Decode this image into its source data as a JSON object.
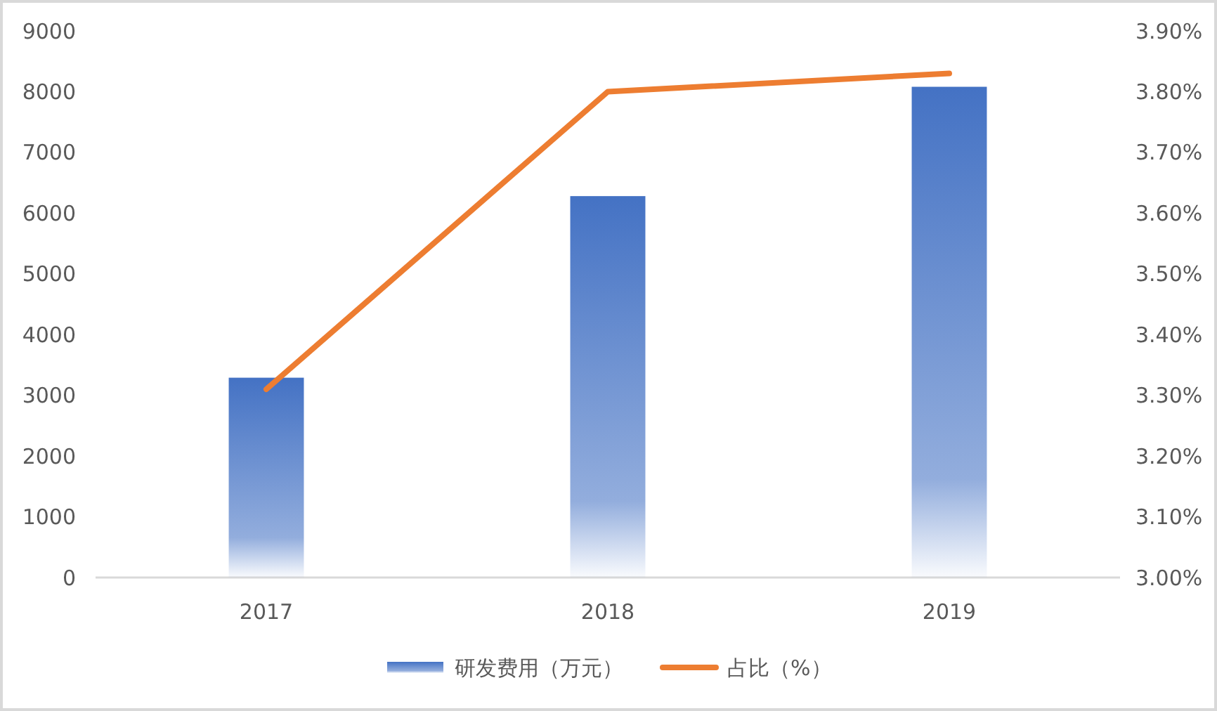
{
  "chart_data": {
    "type": "bar",
    "categories": [
      "2017",
      "2018",
      "2019"
    ],
    "series": [
      {
        "name": "研发费用（万元）",
        "color": "#4472c4",
        "values": [
          3290,
          6280,
          8080
        ]
      },
      {
        "name": "占比（%）",
        "type": "line",
        "axis": "y2",
        "color": "#ed7d31",
        "values": [
          3.31,
          3.8,
          3.83
        ]
      }
    ],
    "ylim": [
      0,
      9000
    ],
    "yticks": [
      0,
      1000,
      2000,
      3000,
      4000,
      5000,
      6000,
      7000,
      8000,
      9000
    ],
    "y2lim": [
      3.0,
      3.9
    ],
    "y2ticks": [
      {
        "value": 3.0,
        "label": "3.00%"
      },
      {
        "value": 3.1,
        "label": "3.10%"
      },
      {
        "value": 3.2,
        "label": "3.20%"
      },
      {
        "value": 3.3,
        "label": "3.30%"
      },
      {
        "value": 3.4,
        "label": "3.40%"
      },
      {
        "value": 3.5,
        "label": "3.50%"
      },
      {
        "value": 3.6,
        "label": "3.60%"
      },
      {
        "value": 3.7,
        "label": "3.70%"
      },
      {
        "value": 3.8,
        "label": "3.80%"
      },
      {
        "value": 3.9,
        "label": "3.90%"
      }
    ],
    "legend": "bottom"
  }
}
